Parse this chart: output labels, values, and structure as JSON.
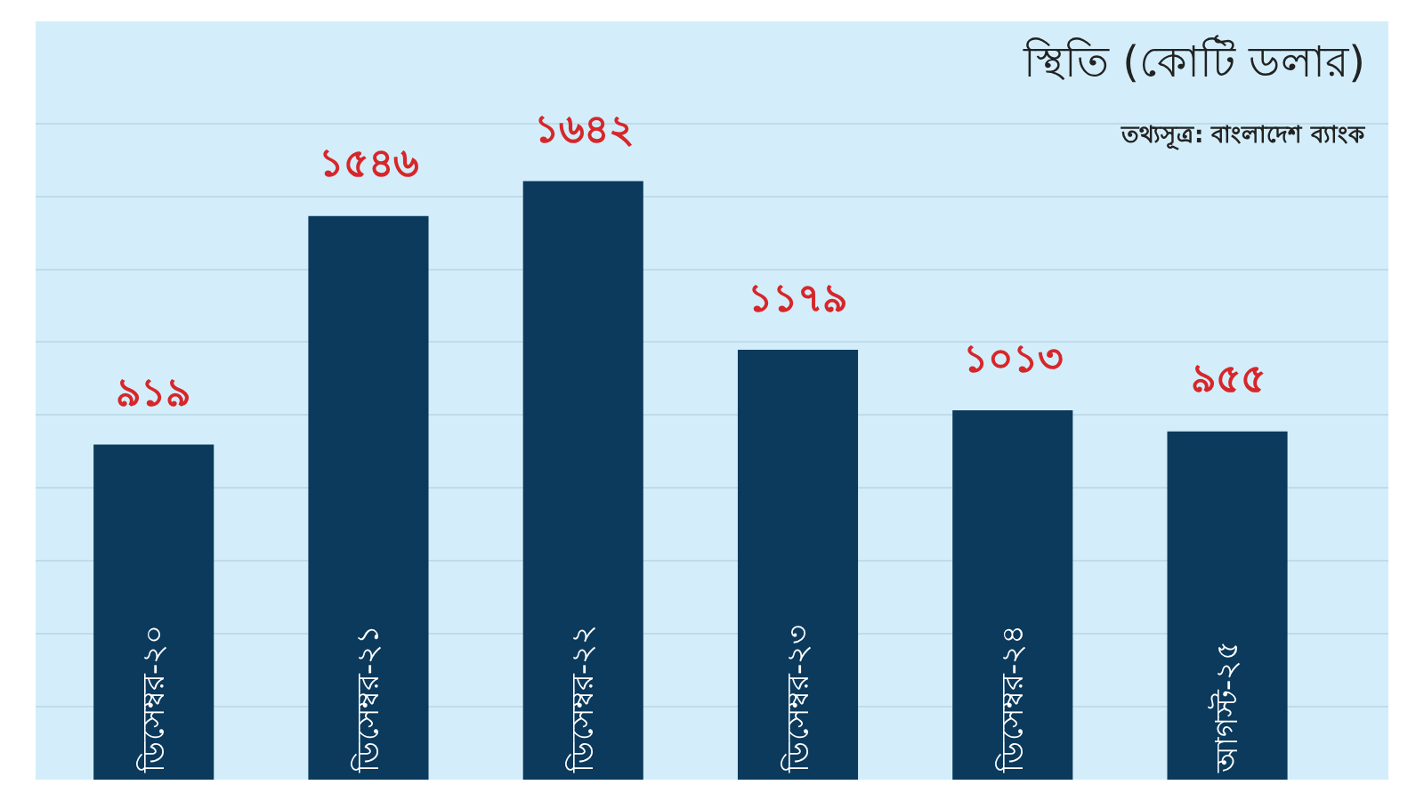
{
  "chart_data": {
    "type": "bar",
    "title": "স্থিতি (কোটি ডলার)",
    "annotations": [
      "তথ্যসূত্র: বাংলাদেশ ব্যাংক"
    ],
    "categories": [
      "ডিসেম্বর-২০",
      "ডিসেম্বর-২১",
      "ডিসেম্বর-২২",
      "ডিসেম্বর-২৩",
      "ডিসেম্বর-২৪",
      "আগস্ট-২৫"
    ],
    "values": [
      919,
      1546,
      1642,
      1179,
      1013,
      955
    ],
    "value_labels": [
      "৯১৯",
      "১৫৪৬",
      "১৬৪২",
      "১১৭৯",
      "১০১৩",
      "৯৫৫"
    ],
    "color": "#0b3a5c",
    "ylim": [
      0,
      2080
    ],
    "yticks": [
      {
        "value": 0,
        "label": null
      },
      {
        "value": 200,
        "label": null
      },
      {
        "value": 400,
        "label": null
      },
      {
        "value": 600,
        "label": null
      },
      {
        "value": 800,
        "label": null
      },
      {
        "value": 1000,
        "label": null
      },
      {
        "value": 1200,
        "label": null
      },
      {
        "value": 1400,
        "label": null
      },
      {
        "value": 1600,
        "label": null
      },
      {
        "value": 1800,
        "label": null
      }
    ],
    "grid": "y",
    "tick_labels": false
  }
}
